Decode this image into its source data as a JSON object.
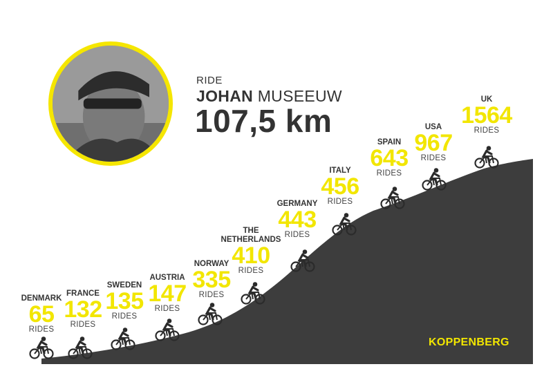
{
  "header": {
    "kicker": "RIDE",
    "rider_first": "JOHAN",
    "rider_last": "MUSEEUW",
    "distance": "107,5 km"
  },
  "climb": {
    "name": "KOPPENBERG"
  },
  "colors": {
    "accent": "#f2e600",
    "hill": "#3d3d3d",
    "text": "#333333"
  },
  "icons": {
    "rider": "cyclist-icon"
  },
  "chart_data": {
    "type": "bar",
    "unit_label": "RIDES",
    "categories": [
      "DENMARK",
      "FRANCE",
      "SWEDEN",
      "AUSTRIA",
      "NORWAY",
      "THE NETHERLANDS",
      "GERMANY",
      "ITALY",
      "SPAIN",
      "USA",
      "UK"
    ],
    "values": [
      65,
      132,
      135,
      147,
      335,
      410,
      443,
      456,
      643,
      967,
      1564
    ],
    "value_labels": [
      "65",
      "132",
      "135",
      "147",
      "335",
      "410",
      "443",
      "456",
      "643",
      "967",
      "1564"
    ]
  }
}
